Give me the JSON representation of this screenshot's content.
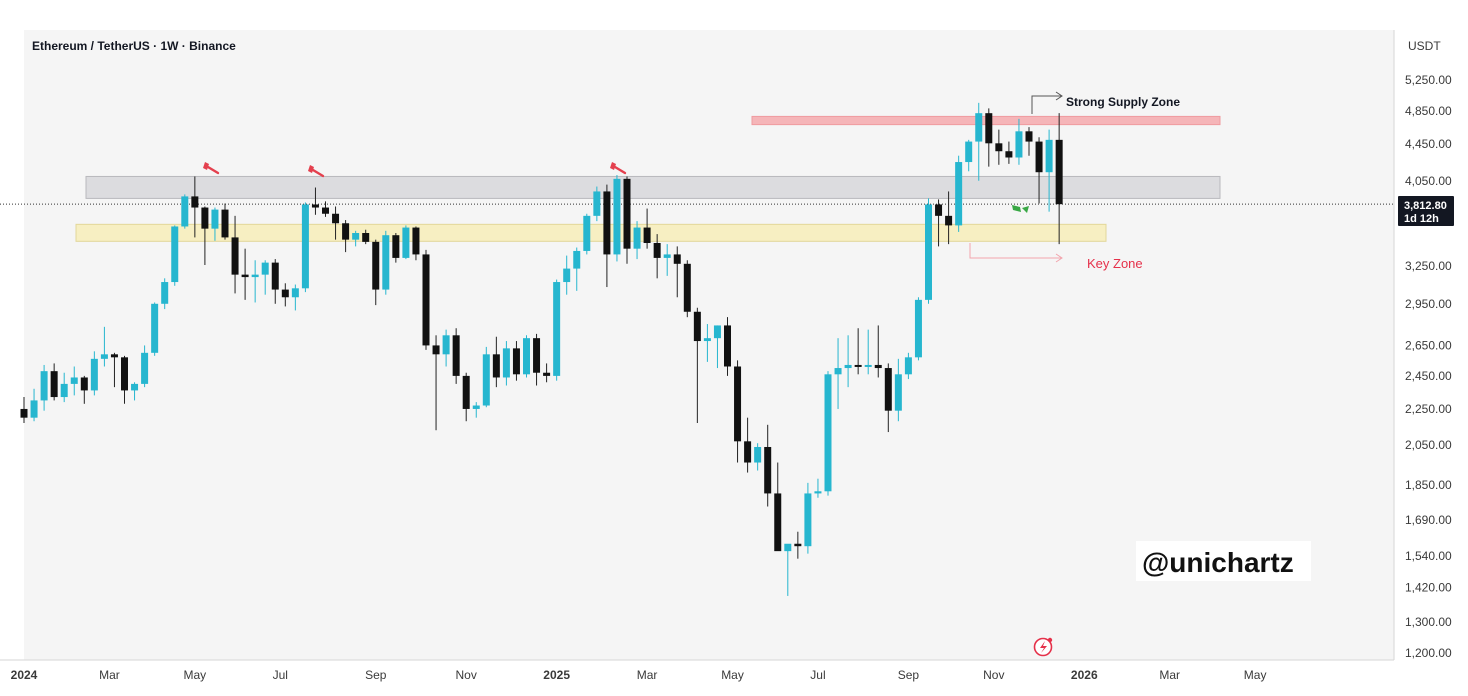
{
  "chart_data": {
    "type": "candlestick",
    "title": "Ethereum / TetherUS · 1W · Binance",
    "currency_label": "USDT",
    "y_axis": {
      "scale": "log",
      "ylim": [
        1160,
        5600
      ],
      "ticks": [
        1200,
        1300,
        1420,
        1540,
        1690,
        1850,
        2050,
        2250,
        2450,
        2650,
        2950,
        3250,
        4050,
        4450,
        4850,
        5250
      ],
      "tick_labels": [
        "1,200.00",
        "1,300.00",
        "1,420.00",
        "1,540.00",
        "1,690.00",
        "1,850.00",
        "2,050.00",
        "2,250.00",
        "2,450.00",
        "2,650.00",
        "2,950.00",
        "3,250.00",
        "4,050.00",
        "4,450.00",
        "4,850.00",
        "5,250.00"
      ]
    },
    "x_axis": {
      "labels": [
        "2024",
        "Mar",
        "May",
        "Jul",
        "Sep",
        "Nov",
        "2025",
        "Mar",
        "May",
        "Jul",
        "Sep",
        "Nov",
        "2026",
        "Mar",
        "May"
      ],
      "bold_labels": [
        "2024",
        "2025",
        "2026"
      ],
      "label_week_index": [
        0,
        8.5,
        17,
        25.5,
        35,
        44,
        53,
        62,
        70.5,
        79,
        88,
        96.5,
        105.5,
        114,
        122.5
      ]
    },
    "last_price": {
      "value": 3812.8,
      "label": "3,812.80",
      "countdown": "1d 12h"
    },
    "candles": [
      [
        2250,
        2320,
        2170,
        2200
      ],
      [
        2200,
        2370,
        2180,
        2300
      ],
      [
        2300,
        2520,
        2240,
        2480
      ],
      [
        2480,
        2530,
        2300,
        2320
      ],
      [
        2320,
        2470,
        2290,
        2400
      ],
      [
        2400,
        2510,
        2330,
        2440
      ],
      [
        2440,
        2450,
        2280,
        2360
      ],
      [
        2360,
        2610,
        2330,
        2560
      ],
      [
        2560,
        2780,
        2510,
        2590
      ],
      [
        2590,
        2600,
        2380,
        2570
      ],
      [
        2570,
        2580,
        2280,
        2360
      ],
      [
        2360,
        2410,
        2300,
        2400
      ],
      [
        2400,
        2650,
        2380,
        2600
      ],
      [
        2600,
        2960,
        2580,
        2950
      ],
      [
        2950,
        3150,
        2910,
        3120
      ],
      [
        3120,
        3610,
        3090,
        3600
      ],
      [
        3600,
        3910,
        3580,
        3890
      ],
      [
        3890,
        4095,
        3500,
        3780
      ],
      [
        3780,
        3790,
        3260,
        3580
      ],
      [
        3580,
        3780,
        3470,
        3760
      ],
      [
        3760,
        3820,
        3480,
        3500
      ],
      [
        3500,
        3700,
        3030,
        3180
      ],
      [
        3180,
        3400,
        2980,
        3160
      ],
      [
        3160,
        3300,
        2960,
        3180
      ],
      [
        3180,
        3300,
        3020,
        3280
      ],
      [
        3280,
        3310,
        2950,
        3060
      ],
      [
        3060,
        3110,
        2930,
        3000
      ],
      [
        3000,
        3100,
        2900,
        3070
      ],
      [
        3070,
        3830,
        3040,
        3810
      ],
      [
        3810,
        3980,
        3710,
        3780
      ],
      [
        3780,
        3840,
        3690,
        3720
      ],
      [
        3720,
        3790,
        3480,
        3630
      ],
      [
        3630,
        3660,
        3370,
        3480
      ],
      [
        3480,
        3560,
        3420,
        3540
      ],
      [
        3540,
        3570,
        3440,
        3460
      ],
      [
        3460,
        3480,
        2940,
        3060
      ],
      [
        3060,
        3560,
        3020,
        3520
      ],
      [
        3520,
        3540,
        3280,
        3320
      ],
      [
        3320,
        3610,
        3310,
        3590
      ],
      [
        3590,
        3600,
        3300,
        3350
      ],
      [
        3350,
        3390,
        2620,
        2650
      ],
      [
        2650,
        2720,
        2130,
        2590
      ],
      [
        2590,
        2760,
        2510,
        2720
      ],
      [
        2720,
        2770,
        2400,
        2450
      ],
      [
        2450,
        2470,
        2180,
        2250
      ],
      [
        2250,
        2290,
        2200,
        2270
      ],
      [
        2270,
        2640,
        2260,
        2590
      ],
      [
        2590,
        2710,
        2380,
        2440
      ],
      [
        2440,
        2680,
        2390,
        2630
      ],
      [
        2630,
        2680,
        2420,
        2460
      ],
      [
        2460,
        2720,
        2440,
        2700
      ],
      [
        2700,
        2730,
        2390,
        2470
      ],
      [
        2470,
        2530,
        2410,
        2450
      ],
      [
        2450,
        3140,
        2420,
        3120
      ],
      [
        3120,
        3340,
        3020,
        3230
      ],
      [
        3230,
        3410,
        3050,
        3380
      ],
      [
        3380,
        3720,
        3350,
        3700
      ],
      [
        3700,
        3990,
        3650,
        3940
      ],
      [
        3940,
        4010,
        3080,
        3350
      ],
      [
        3350,
        4110,
        3290,
        4070
      ],
      [
        4070,
        4095,
        3270,
        3400
      ],
      [
        3400,
        3650,
        3310,
        3590
      ],
      [
        3590,
        3770,
        3400,
        3450
      ],
      [
        3450,
        3530,
        3150,
        3320
      ],
      [
        3320,
        3440,
        3170,
        3350
      ],
      [
        3350,
        3420,
        3000,
        3270
      ],
      [
        3270,
        3300,
        2850,
        2890
      ],
      [
        2890,
        2920,
        2170,
        2680
      ],
      [
        2680,
        2800,
        2540,
        2700
      ],
      [
        2700,
        2790,
        2500,
        2790
      ],
      [
        2790,
        2850,
        2450,
        2510
      ],
      [
        2510,
        2550,
        1960,
        2070
      ],
      [
        2070,
        2200,
        1910,
        1960
      ],
      [
        1960,
        2060,
        1920,
        2040
      ],
      [
        2040,
        2160,
        1750,
        1810
      ],
      [
        1810,
        1960,
        1580,
        1560
      ],
      [
        1560,
        1580,
        1390,
        1590
      ],
      [
        1590,
        1640,
        1530,
        1580
      ],
      [
        1580,
        1860,
        1550,
        1810
      ],
      [
        1810,
        1880,
        1790,
        1820
      ],
      [
        1820,
        2480,
        1800,
        2460
      ],
      [
        2460,
        2700,
        2250,
        2500
      ],
      [
        2500,
        2720,
        2380,
        2520
      ],
      [
        2520,
        2770,
        2460,
        2510
      ],
      [
        2510,
        2760,
        2460,
        2520
      ],
      [
        2520,
        2790,
        2440,
        2500
      ],
      [
        2500,
        2530,
        2120,
        2240
      ],
      [
        2240,
        2560,
        2180,
        2460
      ],
      [
        2460,
        2600,
        2430,
        2570
      ],
      [
        2570,
        3000,
        2550,
        2980
      ],
      [
        2980,
        3870,
        2950,
        3810
      ],
      [
        3810,
        3860,
        3420,
        3700
      ],
      [
        3700,
        3940,
        3440,
        3610
      ],
      [
        3610,
        4320,
        3550,
        4250
      ],
      [
        4250,
        4500,
        4150,
        4480
      ],
      [
        4480,
        4950,
        4050,
        4820
      ],
      [
        4820,
        4880,
        4200,
        4460
      ],
      [
        4460,
        4620,
        4220,
        4370
      ],
      [
        4370,
        4480,
        4230,
        4300
      ],
      [
        4300,
        4750,
        4220,
        4600
      ],
      [
        4600,
        4650,
        4320,
        4480
      ],
      [
        4480,
        4530,
        3820,
        4140
      ],
      [
        4140,
        4620,
        3740,
        4500
      ],
      [
        4500,
        4820,
        3440,
        3812.8
      ]
    ]
  },
  "zones": {
    "supply_label": "Strong Supply Zone",
    "key_label": "Key Zone",
    "supply_color": "#f5b5b8",
    "gray_color": "#dcdcdf",
    "yellow_color": "#f7efc2"
  },
  "watermark": "@unichartz",
  "colors": {
    "up": "#26b6cf",
    "down": "#111111",
    "background": "#f5f5f5",
    "key_zone_text": "#e5314a",
    "flag_red": "#e4404e"
  }
}
